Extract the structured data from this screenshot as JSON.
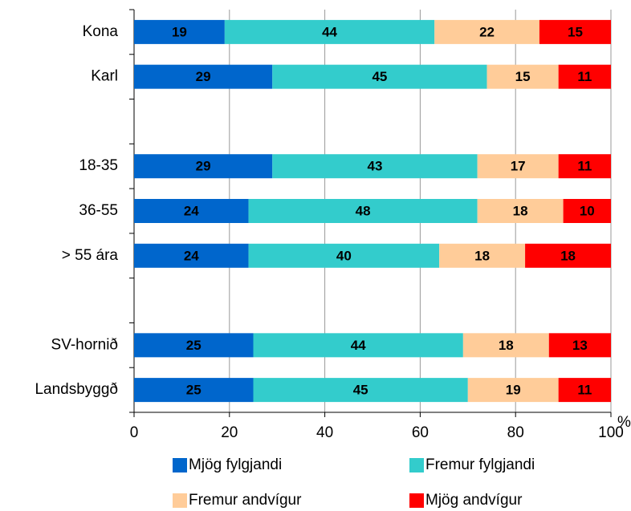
{
  "chart_data": {
    "type": "stacked_bar_horizontal",
    "categories": [
      "Kona",
      "Karl",
      null,
      "18-35",
      "36-55",
      "> 55 ára",
      null,
      "SV-hornið",
      "Landsbyggð"
    ],
    "series": [
      {
        "name": "Mjög fylgjandi",
        "color": "#0066cc",
        "values": [
          19,
          29,
          null,
          29,
          24,
          24,
          null,
          25,
          25
        ]
      },
      {
        "name": "Fremur fylgjandi",
        "color": "#33cccc",
        "values": [
          44,
          45,
          null,
          43,
          48,
          40,
          null,
          44,
          45
        ]
      },
      {
        "name": "Fremur andvígur",
        "color": "#ffcc99",
        "values": [
          22,
          15,
          null,
          17,
          18,
          18,
          null,
          18,
          19
        ]
      },
      {
        "name": "Mjög andvígur",
        "color": "#ff0000",
        "values": [
          15,
          11,
          null,
          11,
          10,
          18,
          null,
          13,
          11
        ]
      }
    ],
    "x_label": "%",
    "xlim": [
      0,
      100
    ],
    "xticks": [
      0,
      20,
      40,
      60,
      80,
      100
    ],
    "grid": true
  }
}
